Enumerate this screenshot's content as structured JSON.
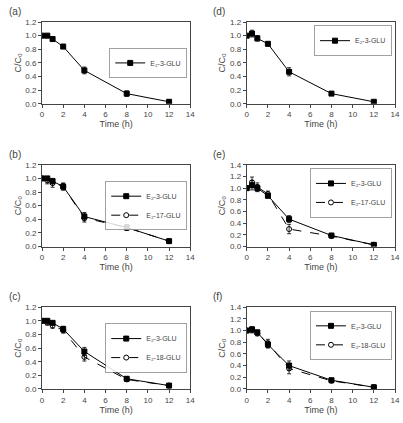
{
  "chart_data": [
    {
      "type": "line",
      "title": "(a)",
      "x_label": "Time (h)",
      "y_label": "C/C₀",
      "x": [
        0,
        0.5,
        1,
        2,
        4,
        8,
        12
      ],
      "xlim": [
        0,
        14
      ],
      "xticks": [
        0,
        2,
        4,
        6,
        8,
        10,
        12,
        14
      ],
      "ylim": [
        0.0,
        1.2
      ],
      "yticks": [
        {
          "value": 0.0,
          "label": "0.0"
        },
        0.2,
        0.4,
        0.6,
        0.8,
        {
          "value": 1.0,
          "label": "1.0"
        },
        1.2
      ],
      "grid": false,
      "legend": "center right",
      "series": [
        {
          "name": "E₂-3-GLU",
          "color": "black",
          "marker": "square",
          "line_style": "solid",
          "values": [
            1.0,
            1.0,
            0.95,
            0.84,
            0.49,
            0.15,
            0.03
          ],
          "error": [
            0.005,
            0.02,
            0.03,
            0.03,
            0.05,
            0.04,
            0.01
          ]
        }
      ]
    },
    {
      "type": "line",
      "title": "(d)",
      "x_label": "Time (h)",
      "y_label": "C/C₀",
      "x": [
        0,
        0.5,
        1,
        2,
        4,
        8,
        12
      ],
      "xlim": [
        0,
        14
      ],
      "xticks": [
        0,
        2,
        4,
        6,
        8,
        10,
        12,
        14
      ],
      "ylim": [
        0.0,
        1.2
      ],
      "yticks": [
        {
          "value": 0.0,
          "label": "0.0"
        },
        0.2,
        0.4,
        0.6,
        0.8,
        {
          "value": 1.0,
          "label": "1.0"
        },
        1.2
      ],
      "grid": false,
      "legend": "upper right",
      "series": [
        {
          "name": "E₂-3-GLU",
          "color": "black",
          "marker": "square",
          "line_style": "solid",
          "values": [
            1.0,
            1.03,
            0.96,
            0.88,
            0.47,
            0.15,
            0.03
          ],
          "error": [
            0.01,
            0.05,
            0.04,
            0.03,
            0.06,
            0.02,
            0.01
          ]
        }
      ]
    },
    {
      "type": "line",
      "title": "(b)",
      "x_label": "Time (h)",
      "y_label": "C/C₀",
      "x": [
        0,
        0.5,
        1,
        2,
        4,
        8,
        12
      ],
      "xlim": [
        0,
        14
      ],
      "xticks": [
        0,
        2,
        4,
        6,
        8,
        10,
        12,
        14
      ],
      "ylim": [
        0.0,
        1.2
      ],
      "yticks": [
        {
          "value": 0.0,
          "label": "0.0"
        },
        0.2,
        0.4,
        0.6,
        0.8,
        {
          "value": 1.0,
          "label": "1.0"
        },
        1.2
      ],
      "grid": false,
      "legend": "center right",
      "series": [
        {
          "name": "E₂-3-GLU",
          "color": "black",
          "marker": "square",
          "line_style": "solid",
          "values": [
            1.0,
            1.0,
            0.96,
            0.88,
            0.44,
            0.28,
            0.08
          ],
          "error": [
            0.01,
            0.02,
            0.04,
            0.05,
            0.06,
            0.04,
            0.01
          ]
        },
        {
          "name": "E₂-17-GLU",
          "color": "black",
          "marker": "circle-open",
          "line_style": "dashed",
          "values": [
            1.0,
            0.97,
            0.93,
            0.88,
            0.42,
            0.28,
            0.08
          ],
          "error": [
            0.02,
            0.05,
            0.06,
            0.05,
            0.06,
            0.04,
            0.01
          ]
        }
      ]
    },
    {
      "type": "line",
      "title": "(e)",
      "x_label": "Time (h)",
      "y_label": "C/C₀",
      "x": [
        0,
        0.5,
        1,
        2,
        4,
        8,
        12
      ],
      "xlim": [
        0,
        14
      ],
      "xticks": [
        0,
        2,
        4,
        6,
        8,
        10,
        12,
        14
      ],
      "ylim": [
        0.0,
        1.4
      ],
      "yticks": [
        {
          "value": 0.0,
          "label": "0.0"
        },
        0.2,
        0.4,
        0.6,
        0.8,
        {
          "value": 1.0,
          "label": "1.0"
        },
        1.2,
        1.4
      ],
      "grid": false,
      "legend": "upper right",
      "series": [
        {
          "name": "E₂-3-GLU",
          "color": "black",
          "marker": "square",
          "line_style": "solid",
          "values": [
            1.0,
            1.05,
            1.0,
            0.87,
            0.47,
            0.19,
            0.03
          ],
          "error": [
            0.01,
            0.08,
            0.06,
            0.04,
            0.06,
            0.03,
            0.01
          ]
        },
        {
          "name": "E₂-17-GLU",
          "color": "black",
          "marker": "circle-open",
          "line_style": "dashed",
          "values": [
            1.0,
            1.1,
            1.02,
            0.9,
            0.3,
            0.18,
            0.03
          ],
          "error": [
            0.02,
            0.09,
            0.07,
            0.05,
            0.08,
            0.03,
            0.01
          ]
        }
      ]
    },
    {
      "type": "line",
      "title": "(c)",
      "x_label": "Time (h)",
      "y_label": "C/C₀",
      "x": [
        0,
        0.5,
        1,
        2,
        4,
        8,
        12
      ],
      "xlim": [
        0,
        14
      ],
      "xticks": [
        0,
        2,
        4,
        6,
        8,
        10,
        12,
        14
      ],
      "ylim": [
        0.0,
        1.2
      ],
      "yticks": [
        {
          "value": 0.0,
          "label": "0.0"
        },
        0.2,
        0.4,
        0.6,
        0.8,
        {
          "value": 1.0,
          "label": "1.0"
        },
        1.2
      ],
      "grid": false,
      "legend": "center right",
      "series": [
        {
          "name": "E₂-3-GLU",
          "color": "black",
          "marker": "square",
          "line_style": "solid",
          "values": [
            1.0,
            1.0,
            0.97,
            0.88,
            0.55,
            0.15,
            0.05
          ],
          "error": [
            0.01,
            0.02,
            0.03,
            0.04,
            0.06,
            0.03,
            0.01
          ]
        },
        {
          "name": "E₂-18-GLU",
          "color": "black",
          "marker": "circle-open",
          "line_style": "dashed",
          "values": [
            1.0,
            0.97,
            0.93,
            0.86,
            0.47,
            0.14,
            0.05
          ],
          "error": [
            0.02,
            0.03,
            0.04,
            0.04,
            0.06,
            0.03,
            0.01
          ]
        }
      ]
    },
    {
      "type": "line",
      "title": "(f)",
      "x_label": "Time (h)",
      "y_label": "C/C₀",
      "x": [
        0,
        0.5,
        1,
        2,
        4,
        8,
        12
      ],
      "xlim": [
        0,
        14
      ],
      "xticks": [
        0,
        2,
        4,
        6,
        8,
        10,
        12,
        14
      ],
      "ylim": [
        0.0,
        1.4
      ],
      "yticks": [
        {
          "value": 0.0,
          "label": "0.0"
        },
        0.2,
        0.4,
        0.6,
        0.8,
        {
          "value": 1.0,
          "label": "1.0"
        },
        1.2,
        1.4
      ],
      "grid": false,
      "legend": "upper right",
      "series": [
        {
          "name": "E₂-3-GLU",
          "color": "black",
          "marker": "square",
          "line_style": "solid",
          "values": [
            1.0,
            1.02,
            0.97,
            0.76,
            0.4,
            0.15,
            0.03
          ],
          "error": [
            0.01,
            0.04,
            0.03,
            0.06,
            0.08,
            0.03,
            0.01
          ]
        },
        {
          "name": "E₂-18-GLU",
          "color": "black",
          "marker": "circle-open",
          "line_style": "dashed",
          "values": [
            1.0,
            1.01,
            0.95,
            0.78,
            0.35,
            0.14,
            0.03
          ],
          "error": [
            0.02,
            0.05,
            0.04,
            0.07,
            0.09,
            0.03,
            0.01
          ]
        }
      ]
    }
  ]
}
